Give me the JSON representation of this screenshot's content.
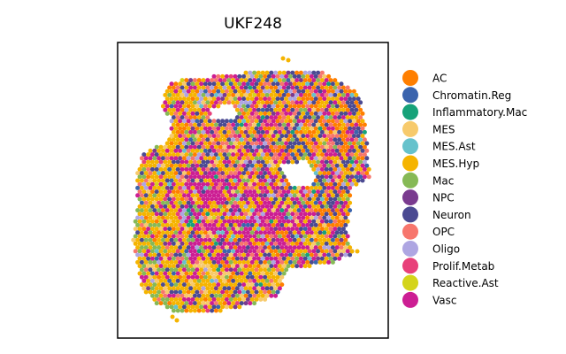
{
  "chart_data": {
    "type": "scatter",
    "title": "UKF248",
    "xlabel": "",
    "ylabel": "",
    "axes_visible": false,
    "grid": false,
    "legend_placement": "right",
    "categories": [
      {
        "name": "AC",
        "color": "#ff7f00",
        "share": 0.1
      },
      {
        "name": "Chromatin.Reg",
        "color": "#3b64ad",
        "share": 0.04
      },
      {
        "name": "Inflammatory.Mac",
        "color": "#17a279",
        "share": 0.02
      },
      {
        "name": "MES",
        "color": "#f7ca6c",
        "share": 0.05
      },
      {
        "name": "MES.Ast",
        "color": "#66c2cc",
        "share": 0.02
      },
      {
        "name": "MES.Hyp",
        "color": "#f5b400",
        "share": 0.22
      },
      {
        "name": "Mac",
        "color": "#86b956",
        "share": 0.07
      },
      {
        "name": "NPC",
        "color": "#7a3b8f",
        "share": 0.03
      },
      {
        "name": "Neuron",
        "color": "#4b4a92",
        "share": 0.11
      },
      {
        "name": "OPC",
        "color": "#f7766d",
        "share": 0.08
      },
      {
        "name": "Oligo",
        "color": "#aea6e2",
        "share": 0.04
      },
      {
        "name": "Prolif.Metab",
        "color": "#e8407a",
        "share": 0.02
      },
      {
        "name": "Reactive.Ast",
        "color": "#d4d41a",
        "share": 0.01
      },
      {
        "name": "Vasc",
        "color": "#cc1e93",
        "share": 0.19
      }
    ]
  }
}
